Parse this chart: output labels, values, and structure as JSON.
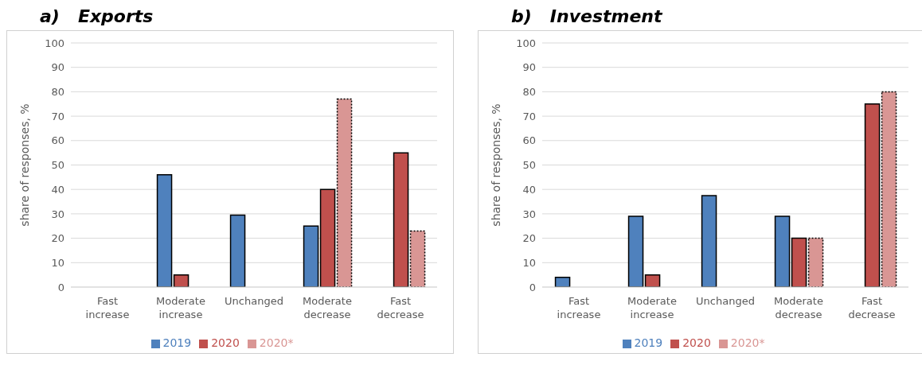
{
  "chart_data": [
    {
      "type": "bar",
      "title": "a)   Exports",
      "ylabel": "share of responses, %",
      "categories": [
        "Fast increase",
        "Moderate increase",
        "Unchanged",
        "Moderate decrease",
        "Fast decrease"
      ],
      "series": [
        {
          "name": "2019",
          "color": "#4f81bd",
          "values": [
            0,
            46,
            29.5,
            25,
            0
          ]
        },
        {
          "name": "2020",
          "color": "#c0504d",
          "values": [
            0,
            5,
            0,
            40,
            55
          ]
        },
        {
          "name": "2020*",
          "color": "#d99694",
          "line_style": "dotted",
          "values": [
            0,
            0,
            0,
            77,
            23
          ]
        }
      ],
      "ylim": [
        0,
        100
      ],
      "yticks": [
        0,
        10,
        20,
        30,
        40,
        50,
        60,
        70,
        80,
        90,
        100
      ],
      "grid": "y",
      "legend": "bottom"
    },
    {
      "type": "bar",
      "title": "b)   Investment",
      "ylabel": "share of responses, %",
      "categories": [
        "Fast increase",
        "Moderate increase",
        "Unchanged",
        "Moderate decrease",
        "Fast decrease"
      ],
      "series": [
        {
          "name": "2019",
          "color": "#4f81bd",
          "values": [
            4,
            29,
            37.5,
            29,
            0
          ]
        },
        {
          "name": "2020",
          "color": "#c0504d",
          "values": [
            0,
            5,
            0,
            20,
            75
          ]
        },
        {
          "name": "2020*",
          "color": "#d99694",
          "line_style": "dotted",
          "values": [
            0,
            0,
            0,
            20,
            80
          ]
        }
      ],
      "ylim": [
        0,
        100
      ],
      "yticks": [
        0,
        10,
        20,
        30,
        40,
        50,
        60,
        70,
        80,
        90,
        100
      ],
      "grid": "y",
      "legend": "bottom"
    }
  ]
}
